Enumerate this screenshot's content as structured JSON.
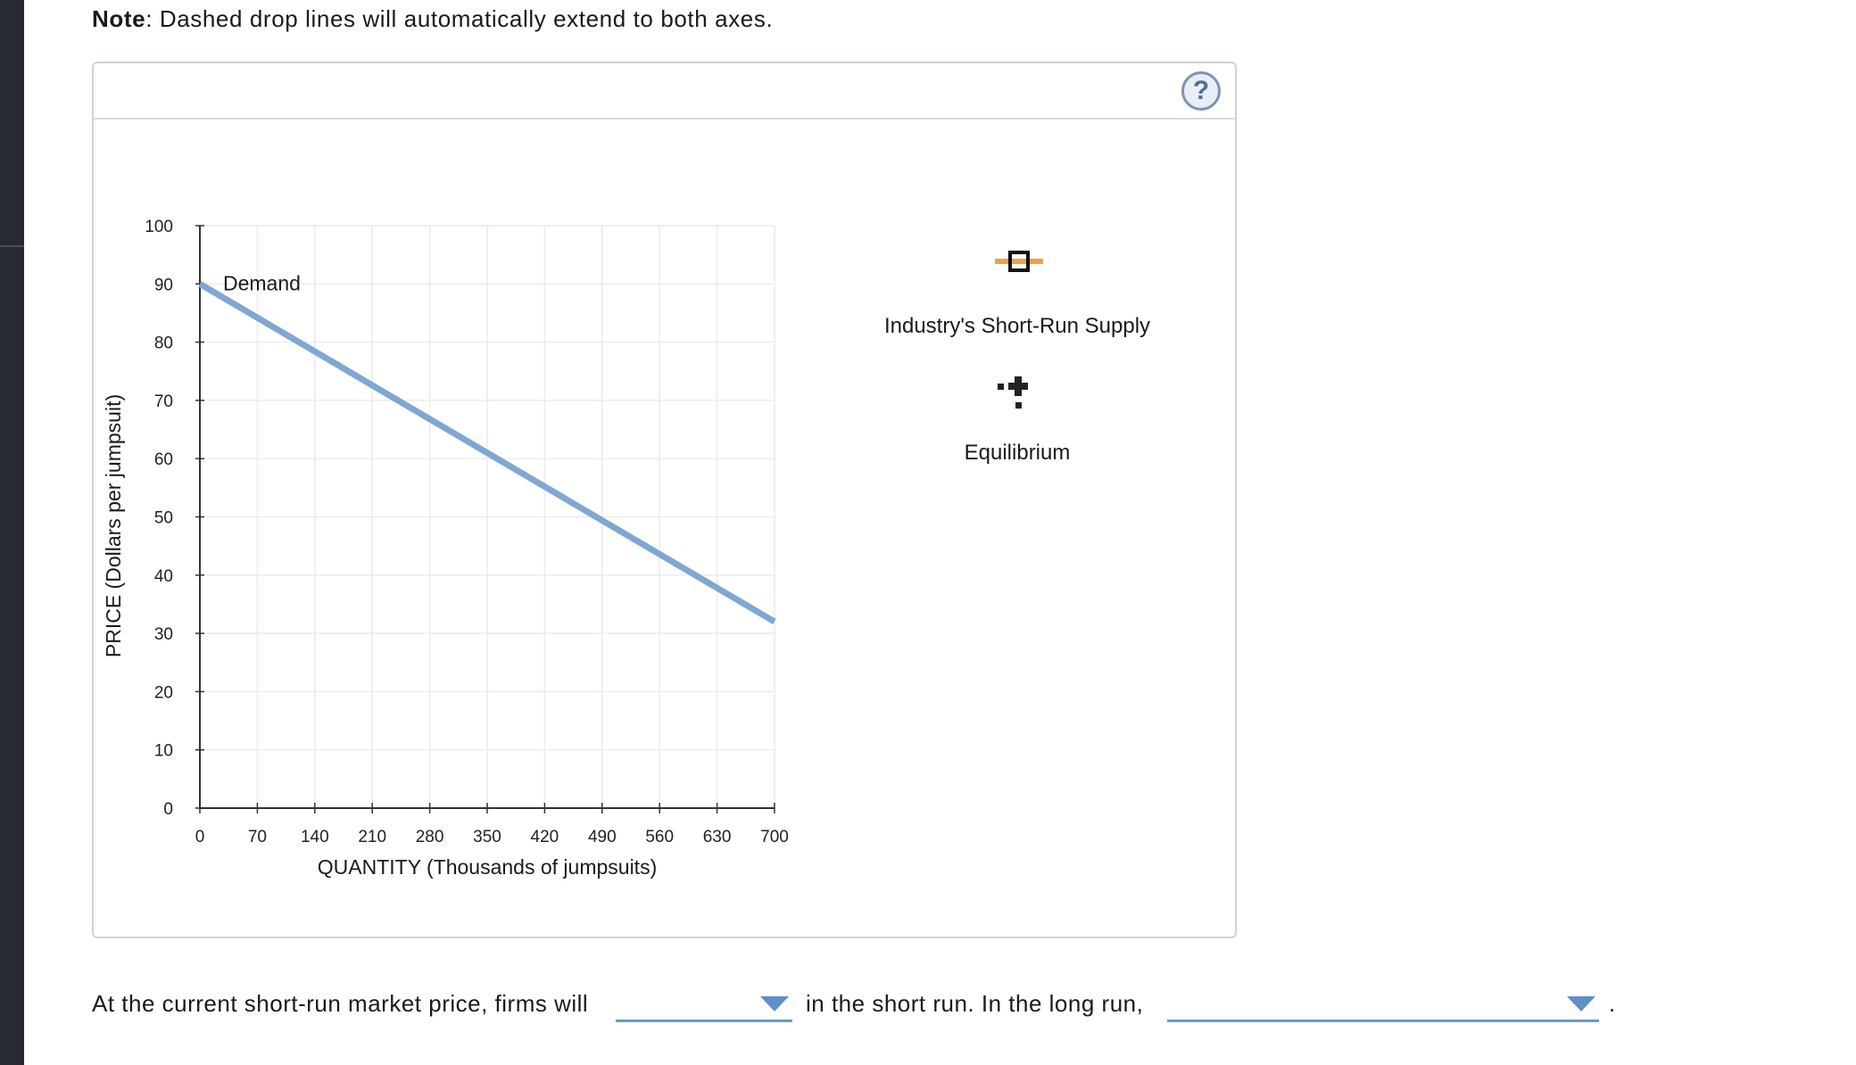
{
  "note": {
    "bold": "Note",
    "text": ": Dashed drop lines will automatically extend to both axes."
  },
  "help_label": "?",
  "legend": {
    "supply_label": "Industry's Short-Run Supply",
    "equilibrium_label": "Equilibrium",
    "colors": {
      "supply_tool": "#f0a04b",
      "equilibrium_tool": "#222222"
    }
  },
  "chart_data": {
    "type": "line",
    "xlabel": "QUANTITY (Thousands of jumpsuits)",
    "ylabel": "PRICE (Dollars per jumpsuit)",
    "xlim": [
      0,
      700
    ],
    "ylim": [
      0,
      100
    ],
    "xticks": [
      0,
      70,
      140,
      210,
      280,
      350,
      420,
      490,
      560,
      630,
      700
    ],
    "yticks": [
      0,
      10,
      20,
      30,
      40,
      50,
      60,
      70,
      80,
      90,
      100
    ],
    "grid": true,
    "series": [
      {
        "name": "Demand",
        "color": "#7fa7d1",
        "x": [
          0,
          700
        ],
        "y": [
          90,
          32
        ]
      }
    ]
  },
  "question": {
    "part1": "At the current short-run market price, firms will",
    "part2": "in the short run. In the long run,",
    "end": ".",
    "dropdown1_value": "",
    "dropdown2_value": ""
  }
}
